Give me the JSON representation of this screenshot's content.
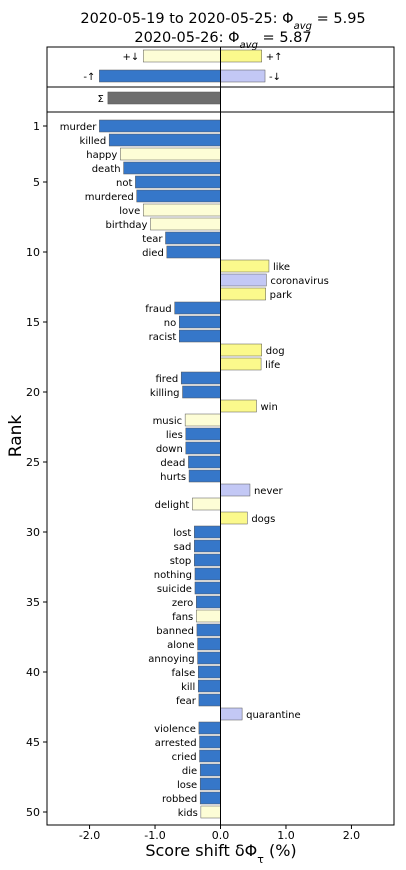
{
  "chart_data": {
    "type": "bar",
    "title_line1_prefix": "2020-05-19 to 2020-05-25: ",
    "title_line1_value": "5.95",
    "title_line2_prefix": "2020-05-26: ",
    "title_line2_value": "5.87",
    "xlabel": "Score shift δΦ",
    "xlabel_subscript": "τ",
    "xlabel_suffix": " (%)",
    "ylabel": "Rank",
    "xlim": [
      -2.65,
      2.65
    ],
    "xticks": [
      -2.0,
      -1.0,
      0.0,
      1.0,
      2.0
    ],
    "xtick_labels": [
      "-2.0",
      "-1.0",
      "0.0",
      "1.0",
      "2.0"
    ],
    "yticks": [
      1,
      5,
      10,
      15,
      20,
      25,
      30,
      35,
      40,
      45,
      50
    ],
    "colors": {
      "neg_up": "#3677c9",
      "pos_down": "#fdfdd6",
      "pos_up": "#fbf98c",
      "neg_down": "#c3c8f5",
      "sum": "#6e6e6e"
    },
    "summary": [
      {
        "label": "+↓",
        "value": -1.18,
        "cat": "pos_down"
      },
      {
        "label": "+↑",
        "value": 0.63,
        "cat": "pos_up"
      },
      {
        "label": "-↑",
        "value": -1.85,
        "cat": "neg_up"
      },
      {
        "label": "-↓",
        "value": 0.68,
        "cat": "neg_down"
      },
      {
        "label": "Σ",
        "value": -1.72,
        "cat": "sum"
      }
    ],
    "words": [
      {
        "rank": 1,
        "word": "murder",
        "value": -1.85,
        "cat": "neg_up"
      },
      {
        "rank": 2,
        "word": "killed",
        "value": -1.7,
        "cat": "neg_up"
      },
      {
        "rank": 3,
        "word": "happy",
        "value": -1.53,
        "cat": "pos_down"
      },
      {
        "rank": 4,
        "word": "death",
        "value": -1.48,
        "cat": "neg_up"
      },
      {
        "rank": 5,
        "word": "not",
        "value": -1.3,
        "cat": "neg_up"
      },
      {
        "rank": 6,
        "word": "murdered",
        "value": -1.28,
        "cat": "neg_up"
      },
      {
        "rank": 7,
        "word": "love",
        "value": -1.18,
        "cat": "pos_down"
      },
      {
        "rank": 8,
        "word": "birthday",
        "value": -1.07,
        "cat": "pos_down"
      },
      {
        "rank": 9,
        "word": "tear",
        "value": -0.84,
        "cat": "neg_up"
      },
      {
        "rank": 10,
        "word": "died",
        "value": -0.82,
        "cat": "neg_up"
      },
      {
        "rank": 11,
        "word": "like",
        "value": 0.74,
        "cat": "pos_up"
      },
      {
        "rank": 12,
        "word": "coronavirus",
        "value": 0.7,
        "cat": "neg_down"
      },
      {
        "rank": 13,
        "word": "park",
        "value": 0.69,
        "cat": "pos_up"
      },
      {
        "rank": 14,
        "word": "fraud",
        "value": -0.7,
        "cat": "neg_up"
      },
      {
        "rank": 15,
        "word": "no",
        "value": -0.63,
        "cat": "neg_up"
      },
      {
        "rank": 16,
        "word": "racist",
        "value": -0.63,
        "cat": "neg_up"
      },
      {
        "rank": 17,
        "word": "dog",
        "value": 0.63,
        "cat": "pos_up"
      },
      {
        "rank": 18,
        "word": "life",
        "value": 0.62,
        "cat": "pos_up"
      },
      {
        "rank": 19,
        "word": "fired",
        "value": -0.6,
        "cat": "neg_up"
      },
      {
        "rank": 20,
        "word": "killing",
        "value": -0.58,
        "cat": "neg_up"
      },
      {
        "rank": 21,
        "word": "win",
        "value": 0.55,
        "cat": "pos_up"
      },
      {
        "rank": 22,
        "word": "music",
        "value": -0.54,
        "cat": "pos_down"
      },
      {
        "rank": 23,
        "word": "lies",
        "value": -0.53,
        "cat": "neg_up"
      },
      {
        "rank": 24,
        "word": "down",
        "value": -0.53,
        "cat": "neg_up"
      },
      {
        "rank": 25,
        "word": "dead",
        "value": -0.49,
        "cat": "neg_up"
      },
      {
        "rank": 26,
        "word": "hurts",
        "value": -0.48,
        "cat": "neg_up"
      },
      {
        "rank": 27,
        "word": "never",
        "value": 0.45,
        "cat": "neg_down"
      },
      {
        "rank": 28,
        "word": "delight",
        "value": -0.43,
        "cat": "pos_down"
      },
      {
        "rank": 29,
        "word": "dogs",
        "value": 0.41,
        "cat": "pos_up"
      },
      {
        "rank": 30,
        "word": "lost",
        "value": -0.4,
        "cat": "neg_up"
      },
      {
        "rank": 31,
        "word": "sad",
        "value": -0.4,
        "cat": "neg_up"
      },
      {
        "rank": 32,
        "word": "stop",
        "value": -0.4,
        "cat": "neg_up"
      },
      {
        "rank": 33,
        "word": "nothing",
        "value": -0.39,
        "cat": "neg_up"
      },
      {
        "rank": 34,
        "word": "suicide",
        "value": -0.39,
        "cat": "neg_up"
      },
      {
        "rank": 35,
        "word": "zero",
        "value": -0.37,
        "cat": "neg_up"
      },
      {
        "rank": 36,
        "word": "fans",
        "value": -0.37,
        "cat": "pos_down"
      },
      {
        "rank": 37,
        "word": "banned",
        "value": -0.36,
        "cat": "neg_up"
      },
      {
        "rank": 38,
        "word": "alone",
        "value": -0.35,
        "cat": "neg_up"
      },
      {
        "rank": 39,
        "word": "annoying",
        "value": -0.35,
        "cat": "neg_up"
      },
      {
        "rank": 40,
        "word": "false",
        "value": -0.34,
        "cat": "neg_up"
      },
      {
        "rank": 41,
        "word": "kill",
        "value": -0.34,
        "cat": "neg_up"
      },
      {
        "rank": 42,
        "word": "fear",
        "value": -0.33,
        "cat": "neg_up"
      },
      {
        "rank": 43,
        "word": "quarantine",
        "value": 0.33,
        "cat": "neg_down"
      },
      {
        "rank": 44,
        "word": "violence",
        "value": -0.33,
        "cat": "neg_up"
      },
      {
        "rank": 45,
        "word": "arrested",
        "value": -0.32,
        "cat": "neg_up"
      },
      {
        "rank": 46,
        "word": "cried",
        "value": -0.32,
        "cat": "neg_up"
      },
      {
        "rank": 47,
        "word": "die",
        "value": -0.31,
        "cat": "neg_up"
      },
      {
        "rank": 48,
        "word": "lose",
        "value": -0.31,
        "cat": "neg_up"
      },
      {
        "rank": 49,
        "word": "robbed",
        "value": -0.31,
        "cat": "neg_up"
      },
      {
        "rank": 50,
        "word": "kids",
        "value": -0.3,
        "cat": "pos_down"
      }
    ]
  }
}
